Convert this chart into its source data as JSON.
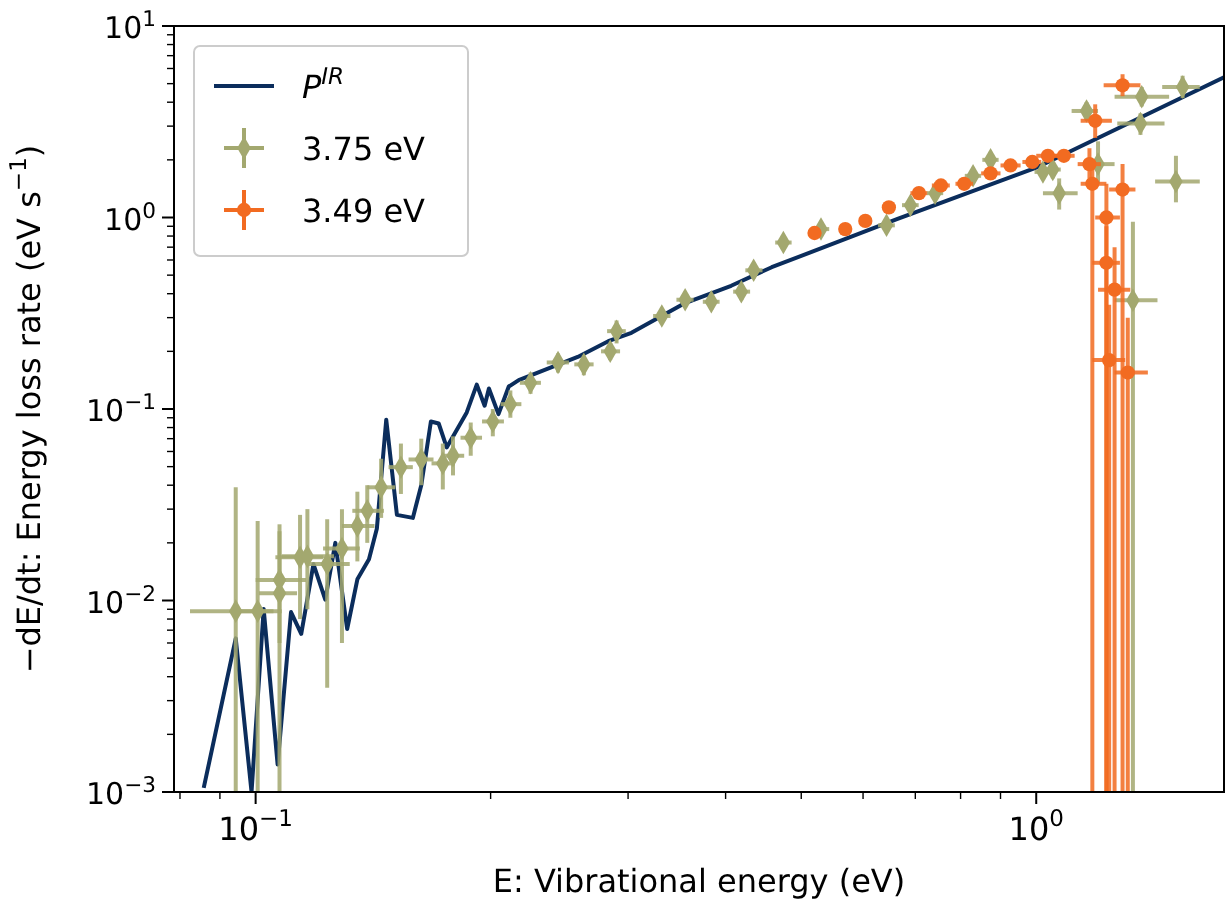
{
  "chart_data": {
    "type": "scatter",
    "xlabel": "E: Vibrational energy (eV)",
    "ylabel": "−dE/dt: Energy loss rate (eV s$^{−1}$)",
    "log": "xy",
    "legend": "top left",
    "xlim": [
      0.0786,
      1.74
    ],
    "ylim": [
      0.001,
      10
    ],
    "xticks": [
      {
        "value": 0.08,
        "label": null
      },
      {
        "value": 0.09,
        "label": null
      },
      {
        "value": 0.1,
        "label": "10$^{−1}$"
      },
      {
        "value": 0.2,
        "label": null
      },
      {
        "value": 0.3,
        "label": null
      },
      {
        "value": 0.4,
        "label": null
      },
      {
        "value": 0.5,
        "label": null
      },
      {
        "value": 0.6,
        "label": null
      },
      {
        "value": 0.7,
        "label": null
      },
      {
        "value": 0.8,
        "label": null
      },
      {
        "value": 0.9,
        "label": null
      },
      {
        "value": 1,
        "label": "10$^{0}$"
      }
    ],
    "yticks": [
      {
        "value": 0.001,
        "label": "10$^{−3}$"
      },
      {
        "value": 0.002,
        "label": null
      },
      {
        "value": 0.003,
        "label": null
      },
      {
        "value": 0.004,
        "label": null
      },
      {
        "value": 0.005,
        "label": null
      },
      {
        "value": 0.006,
        "label": null
      },
      {
        "value": 0.007,
        "label": null
      },
      {
        "value": 0.008,
        "label": null
      },
      {
        "value": 0.009,
        "label": null
      },
      {
        "value": 0.01,
        "label": "10$^{−2}$"
      },
      {
        "value": 0.02,
        "label": null
      },
      {
        "value": 0.03,
        "label": null
      },
      {
        "value": 0.04,
        "label": null
      },
      {
        "value": 0.05,
        "label": null
      },
      {
        "value": 0.06,
        "label": null
      },
      {
        "value": 0.07,
        "label": null
      },
      {
        "value": 0.08,
        "label": null
      },
      {
        "value": 0.09,
        "label": null
      },
      {
        "value": 0.1,
        "label": "10$^{−1}$"
      },
      {
        "value": 0.2,
        "label": null
      },
      {
        "value": 0.3,
        "label": null
      },
      {
        "value": 0.4,
        "label": null
      },
      {
        "value": 0.5,
        "label": null
      },
      {
        "value": 0.6,
        "label": null
      },
      {
        "value": 0.7,
        "label": null
      },
      {
        "value": 0.8,
        "label": null
      },
      {
        "value": 0.9,
        "label": null
      },
      {
        "value": 1,
        "label": "10$^{0}$"
      },
      {
        "value": 2,
        "label": null
      },
      {
        "value": 3,
        "label": null
      },
      {
        "value": 4,
        "label": null
      },
      {
        "value": 5,
        "label": null
      },
      {
        "value": 6,
        "label": null
      },
      {
        "value": 7,
        "label": null
      },
      {
        "value": 8,
        "label": null
      },
      {
        "value": 9,
        "label": null
      },
      {
        "value": 10,
        "label": "10$^{1}$"
      }
    ],
    "series": [
      {
        "type": "line",
        "name": "P$^{IR}$",
        "color": "#0b2d5c",
        "x": [
          0.0858,
          0.0943,
          0.0988,
          0.1024,
          0.1067,
          0.111,
          0.1144,
          0.1186,
          0.1228,
          0.1265,
          0.131,
          0.135,
          0.1397,
          0.143,
          0.147,
          0.1517,
          0.159,
          0.163,
          0.1677,
          0.1716,
          0.1757,
          0.1864,
          0.192,
          0.1965,
          0.199,
          0.2047,
          0.211,
          0.2173,
          0.2586,
          0.283,
          0.303,
          0.3535,
          0.4066,
          0.4583,
          0.663,
          1.0,
          1.74
        ],
        "values": [
          0.00105,
          0.00634,
          0.001,
          0.00903,
          0.00139,
          0.0087,
          0.0067,
          0.0155,
          0.0101,
          0.02,
          0.0071,
          0.0129,
          0.0164,
          0.0238,
          0.088,
          0.028,
          0.027,
          0.04,
          0.086,
          0.084,
          0.063,
          0.096,
          0.134,
          0.104,
          0.128,
          0.094,
          0.131,
          0.1415,
          0.187,
          0.226,
          0.25,
          0.355,
          0.44,
          0.55,
          0.98,
          1.82,
          5.4
        ]
      },
      {
        "name": "3.75 eV",
        "color": "#a3a86f",
        "marker": "diamond",
        "x": [
          0.0943,
          0.1006,
          0.1073,
          0.1073,
          0.114,
          0.1165,
          0.1235,
          0.129,
          0.135,
          0.139,
          0.1448,
          0.1535,
          0.163,
          0.1737,
          0.179,
          0.1886,
          0.2013,
          0.212,
          0.225,
          0.244,
          0.2633,
          0.2846,
          0.29,
          0.3314,
          0.355,
          0.3835,
          0.419,
          0.4345,
          0.4743,
          0.53,
          0.643,
          0.69,
          0.742,
          0.83,
          0.874,
          1.02,
          1.05,
          1.07,
          1.16,
          1.2,
          1.365,
          1.36,
          1.54,
          1.51,
          1.33
        ],
        "values": [
          0.0088,
          0.0088,
          0.0109,
          0.0128,
          0.0168,
          0.017,
          0.0155,
          0.0187,
          0.0245,
          0.0294,
          0.039,
          0.0497,
          0.0545,
          0.052,
          0.057,
          0.0708,
          0.0861,
          0.106,
          0.137,
          0.175,
          0.171,
          0.2,
          0.255,
          0.306,
          0.372,
          0.363,
          0.41,
          0.53,
          0.74,
          0.87,
          0.91,
          1.16,
          1.34,
          1.65,
          2.0,
          1.73,
          1.78,
          1.34,
          3.6,
          1.9,
          4.27,
          3.1,
          4.8,
          1.54,
          0.37
        ],
        "errors": [
          [
            0.001,
            0.039
          ],
          [
            0.001,
            0.026
          ],
          [
            0.001,
            0.023
          ],
          [
            0.006,
            0.025
          ],
          [
            0.008,
            0.028
          ],
          [
            0.009,
            0.03
          ],
          [
            0.0035,
            0.0266
          ],
          [
            0.006,
            0.03
          ],
          [
            0.016,
            0.037
          ],
          [
            0.02,
            0.04
          ],
          [
            0.027,
            0.055
          ],
          [
            0.036,
            0.066
          ],
          [
            0.04,
            0.07
          ],
          [
            0.038,
            0.066
          ],
          [
            0.045,
            0.072
          ],
          [
            0.057,
            0.085
          ],
          [
            0.072,
            0.1
          ],
          [
            0.09,
            0.125
          ],
          [
            0.12,
            0.155
          ],
          [
            0.155,
            0.195
          ],
          [
            0.15,
            0.19
          ],
          [
            0.18,
            0.22
          ],
          [
            0.22,
            0.29
          ],
          [
            0.28,
            0.33
          ],
          [
            0.34,
            0.4
          ],
          [
            0.33,
            0.4
          ],
          [
            0.37,
            0.45
          ],
          [
            0.48,
            0.58
          ],
          [
            0.68,
            0.8
          ],
          [
            0.8,
            0.95
          ],
          [
            0.84,
            0.98
          ],
          [
            1.06,
            1.27
          ],
          [
            1.22,
            1.46
          ],
          [
            1.5,
            1.8
          ],
          [
            1.8,
            2.2
          ],
          [
            1.58,
            1.9
          ],
          [
            1.6,
            1.95
          ],
          [
            1.1,
            1.6
          ],
          [
            3.2,
            4.0
          ],
          [
            1.5,
            2.5
          ],
          [
            3.8,
            4.8
          ],
          [
            2.7,
            3.5
          ],
          [
            4.2,
            5.5
          ],
          [
            1.2,
            2.1
          ],
          [
            0.001,
            0.95
          ]
        ],
        "xerrors": [
          [
            0.0824,
            0.1054
          ],
          [
            0.094,
            0.108
          ],
          [
            0.101,
            0.113
          ],
          [
            0.1,
            0.116
          ],
          [
            0.106,
            0.122
          ],
          [
            0.108,
            0.126
          ],
          [
            0.116,
            0.132
          ],
          [
            0.122,
            0.136
          ],
          [
            0.129,
            0.142
          ],
          [
            0.133,
            0.146
          ],
          [
            0.139,
            0.151
          ],
          [
            0.148,
            0.159
          ],
          [
            0.157,
            0.169
          ],
          [
            0.168,
            0.18
          ],
          [
            0.173,
            0.185
          ],
          [
            0.183,
            0.195
          ],
          [
            0.195,
            0.208
          ],
          [
            0.206,
            0.219
          ],
          [
            0.218,
            0.232
          ],
          [
            0.236,
            0.252
          ],
          [
            0.256,
            0.271
          ],
          [
            0.277,
            0.293
          ],
          [
            0.282,
            0.298
          ],
          [
            0.323,
            0.34
          ],
          [
            0.346,
            0.364
          ],
          [
            0.374,
            0.393
          ],
          [
            0.409,
            0.43
          ],
          [
            0.424,
            0.446
          ],
          [
            0.463,
            0.486
          ],
          [
            0.517,
            0.543
          ],
          [
            0.627,
            0.659
          ],
          [
            0.673,
            0.707
          ],
          [
            0.724,
            0.76
          ],
          [
            0.81,
            0.85
          ],
          [
            0.853,
            0.895
          ],
          [
            0.995,
            1.045
          ],
          [
            1.025,
            1.075
          ],
          [
            1.02,
            1.13
          ],
          [
            1.11,
            1.2
          ],
          [
            1.16,
            1.26
          ],
          [
            1.26,
            1.48
          ],
          [
            1.27,
            1.46
          ],
          [
            1.45,
            1.62
          ],
          [
            1.42,
            1.62
          ],
          [
            1.26,
            1.43
          ]
        ]
      },
      {
        "name": "3.49 eV",
        "color": "#f26b21",
        "marker": "circle",
        "x": [
          0.52,
          0.5693,
          0.604,
          0.6475,
          0.7075,
          0.755,
          0.8086,
          0.874,
          0.927,
          0.9885,
          1.035,
          1.085,
          1.17,
          1.19,
          1.29,
          1.18,
          1.29,
          1.23,
          1.23,
          1.26,
          1.24,
          1.31
        ],
        "values": [
          0.83,
          0.87,
          0.96,
          1.13,
          1.34,
          1.47,
          1.5,
          1.7,
          1.87,
          1.95,
          2.1,
          2.1,
          1.9,
          3.2,
          4.9,
          1.5,
          1.4,
          1.0,
          0.58,
          0.42,
          0.18,
          0.155
        ],
        "errors": [
          null,
          null,
          null,
          null,
          [
            1.25,
            1.43
          ],
          [
            1.37,
            1.57
          ],
          [
            1.4,
            1.6
          ],
          [
            1.58,
            1.82
          ],
          [
            1.75,
            2.0
          ],
          [
            1.82,
            2.08
          ],
          [
            1.95,
            2.25
          ],
          [
            1.95,
            2.25
          ],
          [
            1.6,
            2.3
          ],
          [
            2.6,
            3.9
          ],
          [
            4.3,
            5.6
          ],
          [
            0.001,
            1.9
          ],
          [
            0.001,
            1.9
          ],
          [
            0.001,
            1.5
          ],
          [
            0.001,
            0.9
          ],
          [
            0.001,
            0.7
          ],
          [
            0.001,
            0.35
          ],
          [
            0.001,
            0.3
          ]
        ],
        "xerrors": [
          null,
          null,
          null,
          null,
          [
            0.69,
            0.725
          ],
          [
            0.735,
            0.775
          ],
          [
            0.788,
            0.83
          ],
          [
            0.85,
            0.9
          ],
          [
            0.9,
            0.955
          ],
          [
            0.96,
            1.015
          ],
          [
            1.0,
            1.07
          ],
          [
            1.05,
            1.12
          ],
          [
            1.13,
            1.21
          ],
          [
            1.14,
            1.25
          ],
          [
            1.22,
            1.36
          ],
          [
            1.14,
            1.23
          ],
          [
            1.24,
            1.34
          ],
          [
            1.19,
            1.28
          ],
          [
            1.18,
            1.28
          ],
          [
            1.2,
            1.32
          ],
          [
            1.18,
            1.3
          ],
          [
            1.26,
            1.39
          ]
        ]
      }
    ]
  }
}
